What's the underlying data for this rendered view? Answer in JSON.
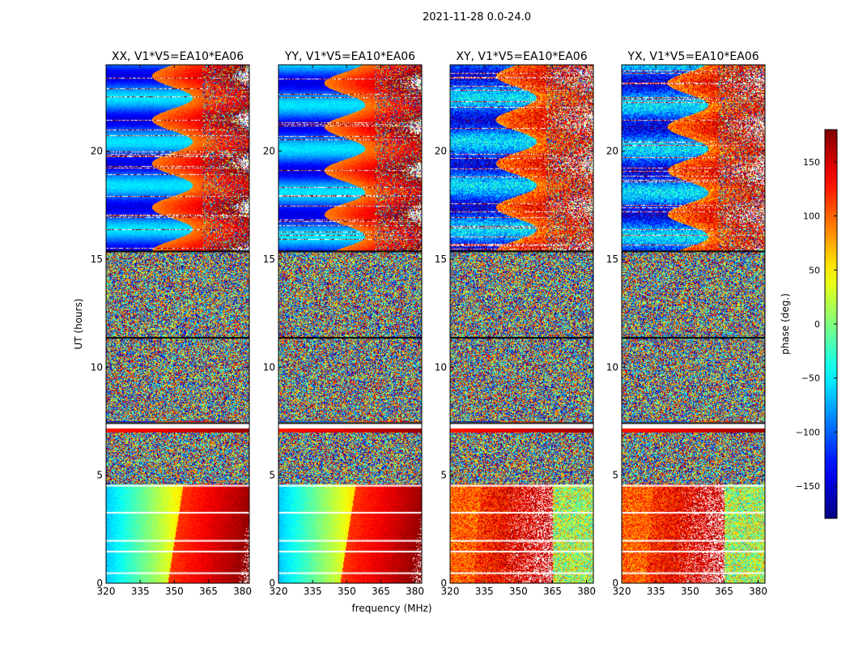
{
  "figure": {
    "suptitle": "2021-11-28 0.0-24.0"
  },
  "chart_data": {
    "type": "heatmap",
    "panels": [
      {
        "title": "XX, V1*V5=EA10*EA06",
        "pattern": "XX"
      },
      {
        "title": "YY, V1*V5=EA10*EA06",
        "pattern": "YY"
      },
      {
        "title": "XY, V1*V5=EA10*EA06",
        "pattern": "XY"
      },
      {
        "title": "YX, V1*V5=EA10*EA06",
        "pattern": "YX"
      }
    ],
    "xlabel": "frequency (MHz)",
    "ylabel": "UT (hours)",
    "xlim": [
      320,
      383
    ],
    "ylim": [
      0,
      24
    ],
    "xticks": [
      320,
      335,
      350,
      365,
      380
    ],
    "yticks": [
      0,
      5,
      10,
      15,
      20
    ],
    "colorbar": {
      "label": "phase (deg.)",
      "range": [
        -180,
        180
      ],
      "ticks": [
        150,
        100,
        50,
        0,
        -50,
        -100,
        -150
      ],
      "tick_labels": [
        "150",
        "100",
        "50",
        "0",
        "−50",
        "−100",
        "−150"
      ],
      "colormap": "jet"
    }
  }
}
